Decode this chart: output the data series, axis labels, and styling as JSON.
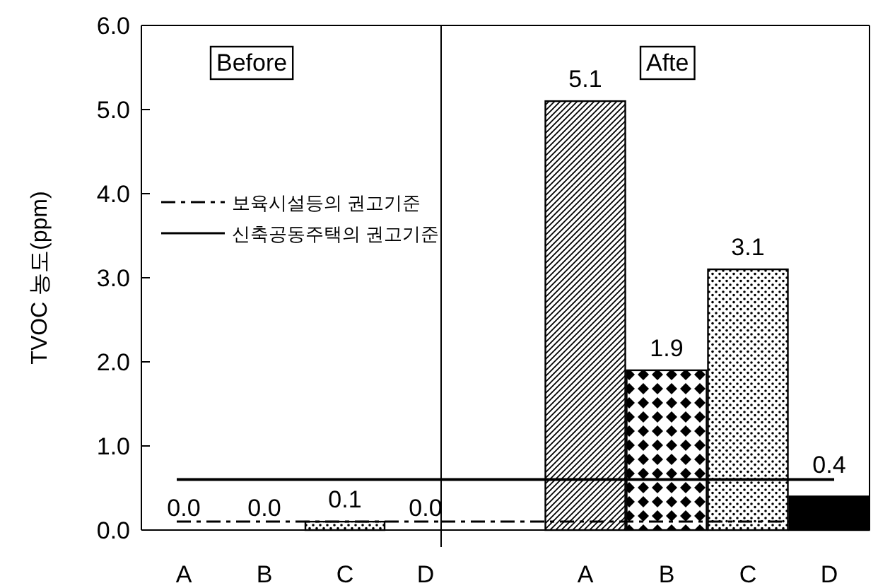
{
  "chart_data": [
    {
      "type": "bar",
      "title": "Before",
      "ylabel": "TVOC 농도(ppm)",
      "categories": [
        "A",
        "B",
        "C",
        "D"
      ],
      "values": [
        0.0,
        0.0,
        0.1,
        0.0
      ],
      "value_labels": [
        "0.0",
        "0.0",
        "0.1",
        "0.0"
      ],
      "colors": [
        "#000000",
        "#000000",
        "#000000",
        "#000000"
      ],
      "ylim": [
        0,
        6
      ],
      "yticks": [
        {
          "value": 0,
          "label": "0.0"
        },
        {
          "value": 1,
          "label": "1.0"
        },
        {
          "value": 2,
          "label": "2.0"
        },
        {
          "value": 3,
          "label": "3.0"
        },
        {
          "value": 4,
          "label": "4.0"
        },
        {
          "value": 5,
          "label": "5.0"
        },
        {
          "value": 6,
          "label": "6.0"
        }
      ],
      "legend": "left",
      "ref_lines": [
        {
          "axis": "y",
          "value": 0.1,
          "label": "보육시설등의 권고기준",
          "color": "#000000",
          "line_style": "dashed"
        },
        {
          "axis": "y",
          "value": 0.6,
          "label": "신축공동주택의 권고기준",
          "color": "#000000",
          "line_style": "solid"
        }
      ]
    },
    {
      "type": "bar",
      "title": "Afte",
      "categories": [
        "A",
        "B",
        "C",
        "D"
      ],
      "values": [
        5.1,
        1.9,
        3.1,
        0.4
      ],
      "value_labels": [
        "5.1",
        "1.9",
        "3.1",
        "0.4"
      ],
      "colors": [
        "#000000",
        "#000000",
        "#000000",
        "#000000"
      ],
      "ylim": [
        0,
        6
      ],
      "tick_labels": "x",
      "ref_lines": [
        {
          "axis": "y",
          "value": 0.1,
          "color": "#000000",
          "line_style": "dashed"
        },
        {
          "axis": "y",
          "value": 0.6,
          "color": "#000000",
          "line_style": "solid"
        }
      ]
    }
  ]
}
